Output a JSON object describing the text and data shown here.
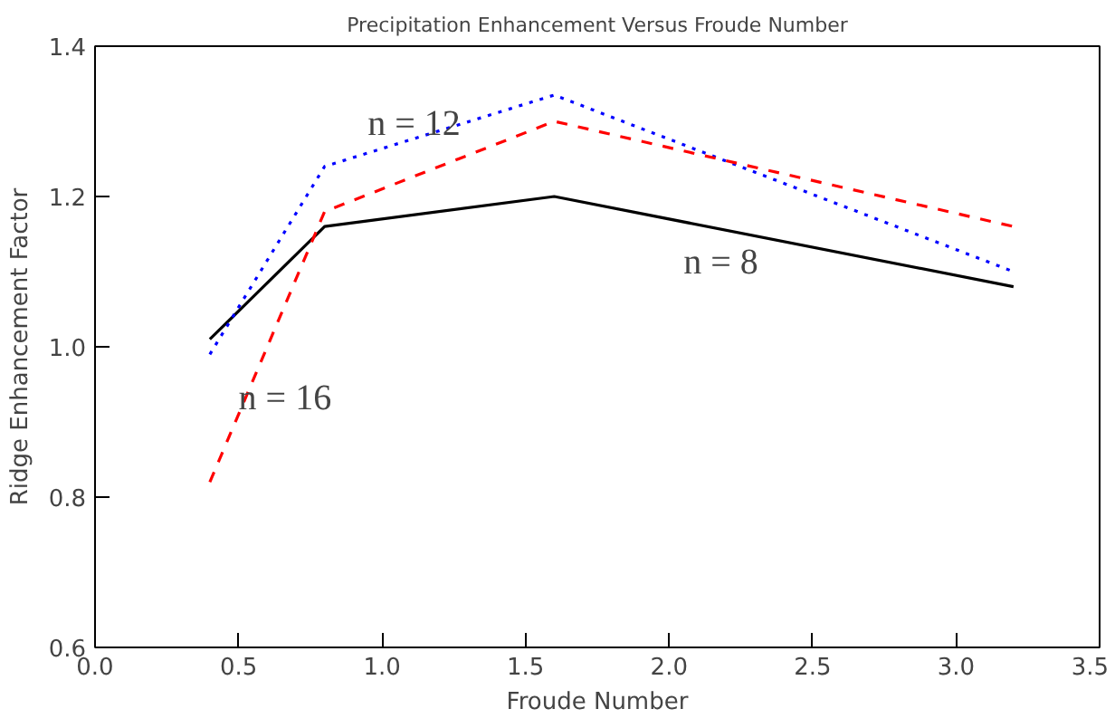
{
  "chart_data": {
    "type": "line",
    "title": "Precipitation Enhancement Versus Froude Number",
    "xlabel": "Froude Number",
    "ylabel": "Ridge Enhancement Factor",
    "x": [
      0.4,
      0.8,
      1.6,
      3.2
    ],
    "series": [
      {
        "name": "n = 8",
        "color": "#000000",
        "line_style": "solid",
        "values": [
          1.01,
          1.16,
          1.2,
          1.08
        ]
      },
      {
        "name": "n = 12",
        "color": "#0000ff",
        "line_style": "dotted",
        "values": [
          0.99,
          1.24,
          1.335,
          1.1
        ]
      },
      {
        "name": "n = 16",
        "color": "#ff0000",
        "line_style": "dashed",
        "values": [
          0.82,
          1.18,
          1.3,
          1.16
        ]
      }
    ],
    "xlim": [
      0.0,
      3.5
    ],
    "xticks": [
      {
        "value": 0.0,
        "label": "0.0"
      },
      {
        "value": 0.5,
        "label": "0.5"
      },
      {
        "value": 1.0,
        "label": "1.0"
      },
      {
        "value": 1.5,
        "label": "1.5"
      },
      {
        "value": 2.0,
        "label": "2.0"
      },
      {
        "value": 2.5,
        "label": "2.5"
      },
      {
        "value": 3.0,
        "label": "3.0"
      },
      {
        "value": 3.5,
        "label": "3.5"
      }
    ],
    "ylim": [
      0.6,
      1.4
    ],
    "yticks": [
      {
        "value": 0.6,
        "label": "0.6"
      },
      {
        "value": 0.8,
        "label": "0.8"
      },
      {
        "value": 1.0,
        "label": "1.0"
      },
      {
        "value": 1.2,
        "label": "1.2"
      },
      {
        "value": 1.4,
        "label": "1.4"
      }
    ],
    "grid": false,
    "marker": "none"
  }
}
